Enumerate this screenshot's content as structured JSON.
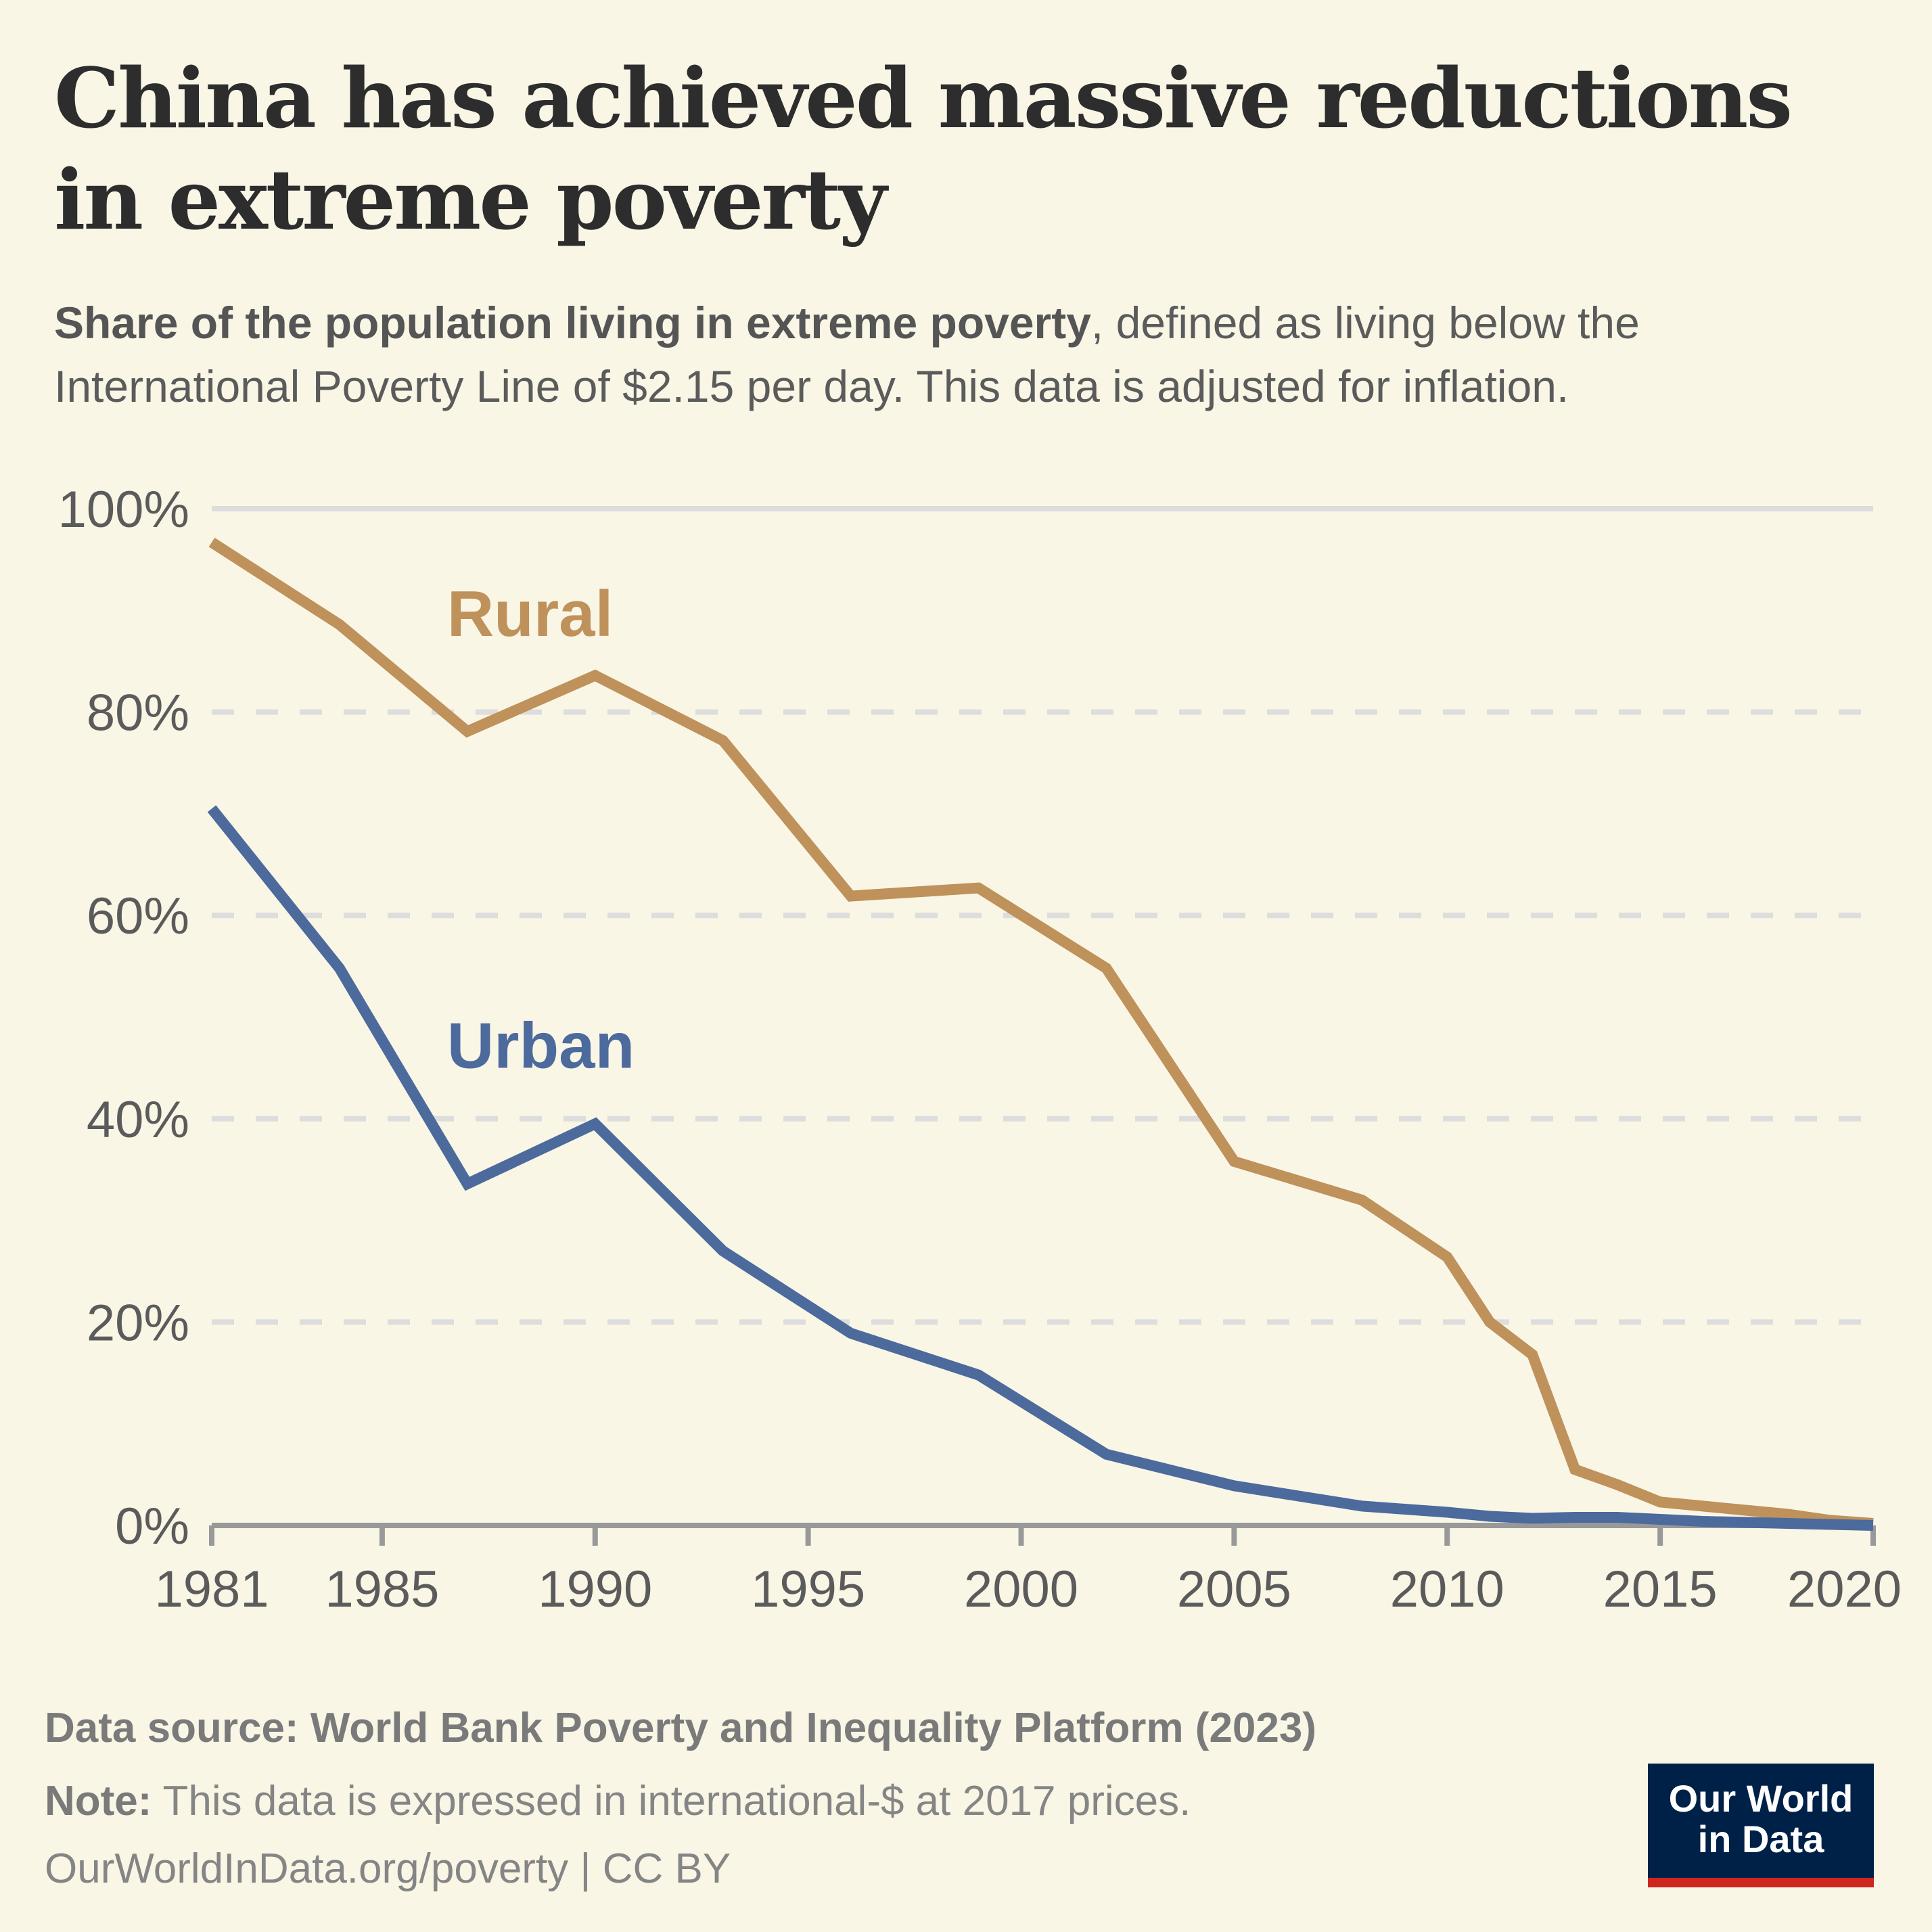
{
  "title": "China has achieved massive reductions in extreme poverty",
  "subtitle": {
    "bold": "Share of the population living in extreme poverty",
    "rest": ", defined as living below the International Poverty Line of $2.15 per day. This data is adjusted for inflation."
  },
  "footer": {
    "source": "Data source: World Bank Poverty and Inequality Platform (2023)",
    "note_label": "Note:",
    "note": " This data is expressed in international-$ at 2017 prices.",
    "link": "OurWorldInData.org/poverty | CC BY"
  },
  "logo": {
    "line1": "Our World",
    "line2": "in Data"
  },
  "colors": {
    "background": "#f9f6e6",
    "rural": "#bf915b",
    "urban": "#4c6a9c",
    "grid": "#dddddd",
    "axis": "#999999",
    "logo_bg": "#002147",
    "logo_bar": "#ce261e"
  },
  "chart_data": {
    "type": "line",
    "title": "China has achieved massive reductions in extreme poverty",
    "xlim": [
      1981,
      2020
    ],
    "ylim": [
      0,
      100
    ],
    "x_ticks": [
      1981,
      1985,
      1990,
      1995,
      2000,
      2005,
      2010,
      2015,
      2020
    ],
    "y_ticks": [
      0,
      20,
      40,
      60,
      80,
      100
    ],
    "y_tick_labels": [
      "0%",
      "20%",
      "40%",
      "60%",
      "80%",
      "100%"
    ],
    "grid": "horizontal dashed",
    "series": [
      {
        "name": "Rural",
        "color": "#bf915b",
        "x": [
          1981,
          1984,
          1987,
          1990,
          1993,
          1996,
          1999,
          2002,
          2005,
          2008,
          2010,
          2011,
          2012,
          2013,
          2014,
          2015,
          2016,
          2017,
          2018,
          2019,
          2020
        ],
        "y": [
          96.7,
          88.6,
          78.1,
          83.6,
          77.2,
          61.9,
          62.7,
          54.8,
          35.8,
          32.0,
          26.4,
          20.0,
          16.8,
          5.5,
          4.0,
          2.3,
          1.9,
          1.5,
          1.1,
          0.5,
          0.2
        ]
      },
      {
        "name": "Urban",
        "color": "#4c6a9c",
        "x": [
          1981,
          1984,
          1987,
          1990,
          1993,
          1996,
          1999,
          2002,
          2005,
          2008,
          2010,
          2011,
          2012,
          2013,
          2014,
          2015,
          2016,
          2017,
          2018,
          2019,
          2020
        ],
        "y": [
          70.5,
          54.8,
          33.6,
          39.5,
          27.0,
          18.9,
          14.8,
          7.0,
          3.9,
          1.9,
          1.3,
          0.9,
          0.7,
          0.8,
          0.8,
          0.6,
          0.4,
          0.3,
          0.2,
          0.1,
          0.0
        ]
      }
    ]
  }
}
